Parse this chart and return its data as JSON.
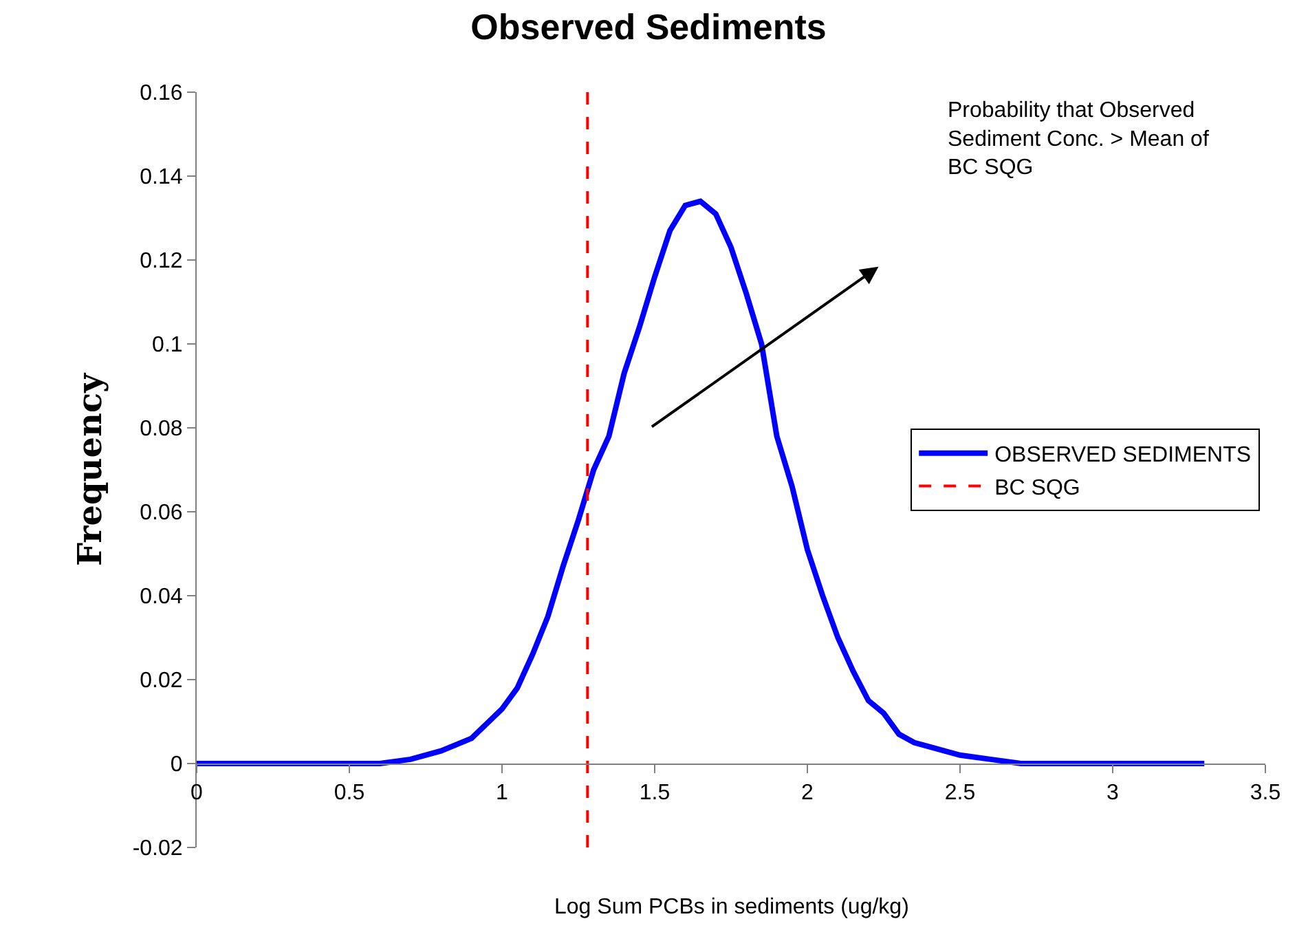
{
  "chart_data": {
    "type": "line",
    "title": "Observed Sediments",
    "xlabel": "Log Sum PCBs in sediments (ug/kg)",
    "ylabel": "Frequency",
    "x": [
      0,
      0.6,
      0.7,
      0.8,
      0.9,
      1.0,
      1.05,
      1.1,
      1.15,
      1.2,
      1.25,
      1.3,
      1.35,
      1.4,
      1.45,
      1.5,
      1.55,
      1.6,
      1.65,
      1.7,
      1.75,
      1.8,
      1.85,
      1.9,
      1.95,
      2.0,
      2.05,
      2.1,
      2.15,
      2.2,
      2.25,
      2.3,
      2.35,
      2.4,
      2.5,
      2.6,
      2.7,
      3.3
    ],
    "series": [
      {
        "name": "OBSERVED SEDIMENTS",
        "color": "#0000ff",
        "values": [
          0,
          0,
          0.001,
          0.003,
          0.006,
          0.013,
          0.018,
          0.026,
          0.035,
          0.047,
          0.058,
          0.07,
          0.078,
          0.093,
          0.104,
          0.116,
          0.127,
          0.133,
          0.134,
          0.131,
          0.123,
          0.112,
          0.1,
          0.078,
          0.066,
          0.051,
          0.04,
          0.03,
          0.022,
          0.015,
          0.012,
          0.007,
          0.005,
          0.004,
          0.002,
          0.001,
          0,
          0
        ]
      },
      {
        "name": "BC SQG",
        "color": "#ff0000",
        "type": "line",
        "line_style": "dashed",
        "x": [
          1.28,
          1.28
        ],
        "values": [
          -0.02,
          0.16
        ]
      }
    ],
    "annotations": [
      "Probability that Observed Sediment Conc. > Mean of BC SQG"
    ],
    "xlim": [
      0,
      3.5
    ],
    "xticks": [
      0,
      0.5,
      1,
      1.5,
      2,
      2.5,
      3,
      3.5
    ],
    "ylim": [
      -0.02,
      0.16
    ],
    "yticks": [
      -0.02,
      0,
      0.02,
      0.04,
      0.06,
      0.08,
      0.1,
      0.12,
      0.14,
      0.16
    ],
    "legend": "right",
    "marker": "none",
    "line_style": "solid"
  }
}
